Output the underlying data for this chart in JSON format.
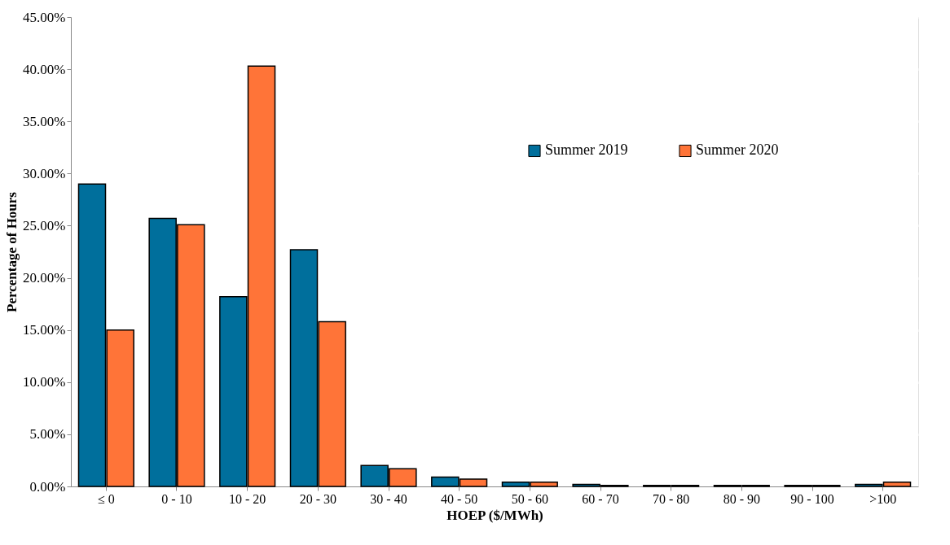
{
  "chart_data": {
    "type": "bar",
    "xlabel": "HOEP  ($/MWh)",
    "ylabel": "Percentage of Hours",
    "categories": [
      "≤ 0",
      "0 - 10",
      "10 - 20",
      "20 - 30",
      "30 - 40",
      "40 - 50",
      "50 - 60",
      "60 - 70",
      "70 - 80",
      "80 - 90",
      "90 - 100",
      ">100"
    ],
    "series": [
      {
        "name": "Summer 2019",
        "color": "#006f9c",
        "values": [
          29.0,
          25.7,
          18.2,
          22.7,
          2.0,
          0.9,
          0.4,
          0.2,
          0.1,
          0.1,
          0.1,
          0.2
        ]
      },
      {
        "name": "Summer 2020",
        "color": "#ff7438",
        "values": [
          15.0,
          25.1,
          40.3,
          15.8,
          1.7,
          0.7,
          0.4,
          0.1,
          0.1,
          0.1,
          0.1,
          0.4
        ]
      }
    ],
    "ylim": [
      0,
      45
    ],
    "yticks": [
      {
        "value": 0,
        "label": "0.00%"
      },
      {
        "value": 5,
        "label": "5.00%"
      },
      {
        "value": 10,
        "label": "10.00%"
      },
      {
        "value": 15,
        "label": "15.00%"
      },
      {
        "value": 20,
        "label": "20.00%"
      },
      {
        "value": 25,
        "label": "25.00%"
      },
      {
        "value": 30,
        "label": "30.00%"
      },
      {
        "value": 35,
        "label": "35.00%"
      },
      {
        "value": 40,
        "label": "40.00%"
      },
      {
        "value": 45,
        "label": "45.00%"
      }
    ],
    "grid": "y",
    "legend": "right"
  }
}
